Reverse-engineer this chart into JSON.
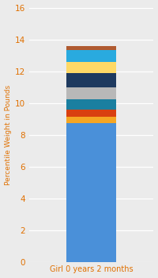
{
  "category": "Girl 0 years 2 months",
  "segments": [
    {
      "value": 8.75,
      "color": "#4a90d9"
    },
    {
      "value": 0.4,
      "color": "#f5a623"
    },
    {
      "value": 0.45,
      "color": "#d94010"
    },
    {
      "value": 0.65,
      "color": "#1a7fa0"
    },
    {
      "value": 0.75,
      "color": "#b8b8b8"
    },
    {
      "value": 0.9,
      "color": "#1e3a5f"
    },
    {
      "value": 0.7,
      "color": "#ffd966"
    },
    {
      "value": 0.75,
      "color": "#29aadf"
    },
    {
      "value": 0.25,
      "color": "#b05a30"
    }
  ],
  "ylabel": "Percentile Weight in Pounds",
  "ylim": [
    0,
    16
  ],
  "yticks": [
    0,
    2,
    4,
    6,
    8,
    10,
    12,
    14,
    16
  ],
  "bg_color": "#ebebeb",
  "xlabel_color": "#e07000",
  "ylabel_color": "#e07000",
  "tick_color": "#e07000",
  "bar_width": 0.4,
  "figsize": [
    2.0,
    3.5
  ],
  "dpi": 100
}
